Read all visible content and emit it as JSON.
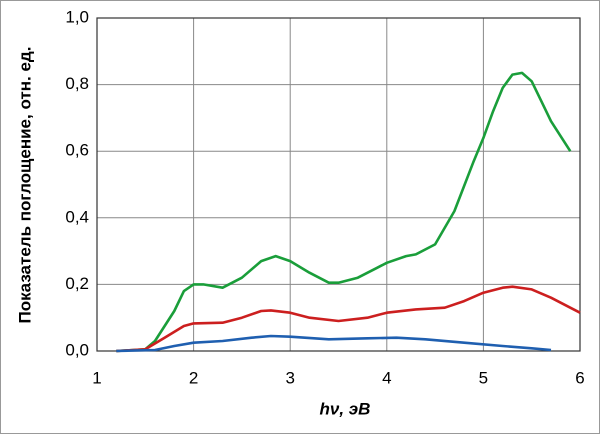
{
  "chart_data": {
    "type": "line",
    "xlabel": "hν, эВ",
    "ylabel": "Показатель поглощение, отн. ед.",
    "xlim": [
      1,
      6
    ],
    "xticks": [
      1,
      2,
      3,
      4,
      5,
      6
    ],
    "ylim": [
      0,
      1.0
    ],
    "yticks": [
      {
        "value": 0,
        "label": "0,0"
      },
      {
        "value": 0.2,
        "label": "0,2"
      },
      {
        "value": 0.4,
        "label": "0,4"
      },
      {
        "value": 0.6,
        "label": "0,6"
      },
      {
        "value": 0.8,
        "label": "0,8"
      },
      {
        "value": 1.0,
        "label": "1,0"
      }
    ],
    "grid": true,
    "series": [
      {
        "color": "#1a9e3a",
        "x": [
          1.2,
          1.5,
          1.6,
          1.8,
          1.9,
          2.0,
          2.1,
          2.3,
          2.5,
          2.7,
          2.85,
          3.0,
          3.2,
          3.4,
          3.5,
          3.7,
          3.9,
          4.0,
          4.2,
          4.3,
          4.5,
          4.7,
          4.9,
          5.0,
          5.1,
          5.2,
          5.3,
          5.4,
          5.5,
          5.6,
          5.7,
          5.9
        ],
        "values": [
          0,
          0.005,
          0.03,
          0.12,
          0.18,
          0.2,
          0.2,
          0.19,
          0.22,
          0.27,
          0.285,
          0.27,
          0.235,
          0.205,
          0.205,
          0.22,
          0.25,
          0.265,
          0.285,
          0.29,
          0.32,
          0.42,
          0.57,
          0.64,
          0.72,
          0.79,
          0.83,
          0.835,
          0.81,
          0.75,
          0.69,
          0.6
        ]
      },
      {
        "color": "#cc1f1f",
        "x": [
          1.2,
          1.5,
          1.7,
          1.9,
          2.0,
          2.3,
          2.5,
          2.7,
          2.8,
          3.0,
          3.2,
          3.5,
          3.8,
          4.0,
          4.3,
          4.6,
          4.8,
          5.0,
          5.2,
          5.3,
          5.5,
          5.7,
          5.9,
          6.0
        ],
        "values": [
          0,
          0.005,
          0.04,
          0.075,
          0.083,
          0.085,
          0.1,
          0.12,
          0.122,
          0.115,
          0.1,
          0.09,
          0.1,
          0.115,
          0.125,
          0.13,
          0.15,
          0.175,
          0.19,
          0.193,
          0.185,
          0.16,
          0.13,
          0.115
        ]
      },
      {
        "color": "#1f5fb0",
        "x": [
          1.2,
          1.6,
          1.8,
          2.0,
          2.3,
          2.6,
          2.8,
          3.0,
          3.4,
          3.8,
          4.1,
          4.4,
          4.8,
          5.2,
          5.5,
          5.7
        ],
        "values": [
          0,
          0.003,
          0.015,
          0.025,
          0.03,
          0.04,
          0.045,
          0.043,
          0.035,
          0.038,
          0.04,
          0.035,
          0.025,
          0.015,
          0.008,
          0.003
        ]
      }
    ]
  }
}
